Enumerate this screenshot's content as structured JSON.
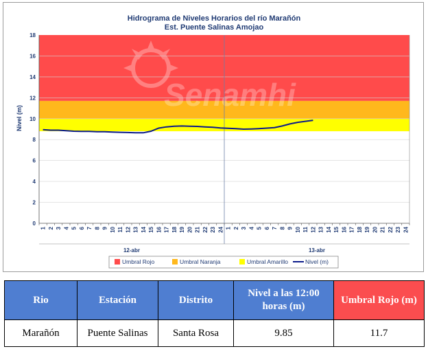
{
  "chart_data": {
    "type": "line",
    "title": "Hidrograma de Niveles Horarios del río Marañón",
    "subtitle": "Est. Puente Salinas Amojao",
    "ylabel": "Nivel (m)",
    "xlabel": "",
    "ylim": [
      0,
      18
    ],
    "yticks": [
      0,
      2,
      4,
      6,
      8,
      10,
      12,
      14,
      16,
      18
    ],
    "hours": [
      "1",
      "2",
      "3",
      "4",
      "5",
      "6",
      "7",
      "8",
      "9",
      "10",
      "11",
      "12",
      "13",
      "14",
      "15",
      "16",
      "17",
      "18",
      "19",
      "20",
      "21",
      "22",
      "23",
      "24",
      "1",
      "2",
      "3",
      "4",
      "5",
      "6",
      "7",
      "8",
      "9",
      "10",
      "11",
      "12",
      "13",
      "14",
      "15",
      "16",
      "17",
      "18",
      "19",
      "20",
      "21",
      "22",
      "23",
      "24"
    ],
    "days": [
      "12-abr",
      "13-abr"
    ],
    "thresholds": [
      {
        "name": "Umbral Rojo",
        "from": 11.7,
        "to": 18,
        "color": "#ff4b4b"
      },
      {
        "name": "Umbral Naranja",
        "from": 10,
        "to": 11.7,
        "color": "#ffb81c"
      },
      {
        "name": "Umbral Amarillo",
        "from": 8.8,
        "to": 10,
        "color": "#ffff00"
      }
    ],
    "series": [
      {
        "name": "Nivel (m)",
        "color": "#0a1a8a",
        "x": [
          0,
          1,
          2,
          3,
          4,
          5,
          6,
          7,
          8,
          9,
          10,
          11,
          12,
          13,
          14,
          15,
          16,
          17,
          18,
          19,
          20,
          21,
          22,
          23,
          24,
          25,
          26,
          27,
          28,
          29,
          30,
          31,
          32,
          33,
          34,
          35
        ],
        "values": [
          8.95,
          8.9,
          8.9,
          8.85,
          8.8,
          8.78,
          8.78,
          8.75,
          8.75,
          8.72,
          8.7,
          8.68,
          8.66,
          8.65,
          8.8,
          9.1,
          9.22,
          9.28,
          9.3,
          9.28,
          9.26,
          9.22,
          9.18,
          9.12,
          9.08,
          9.05,
          9.0,
          9.02,
          9.05,
          9.1,
          9.15,
          9.3,
          9.5,
          9.65,
          9.75,
          9.85
        ]
      }
    ],
    "legend_position": "bottom"
  },
  "watermark": "Senamhi",
  "table": {
    "headers": {
      "rio": "Rio",
      "estacion": "Estación",
      "distrito": "Distrito",
      "nivel": "Nivel a las 12:00 horas (m)",
      "umbral": "Umbral Rojo (m)"
    },
    "row": {
      "rio": "Marañón",
      "estacion": "Puente Salinas",
      "distrito": "Santa Rosa",
      "nivel": "9.85",
      "umbral": "11.7"
    }
  }
}
